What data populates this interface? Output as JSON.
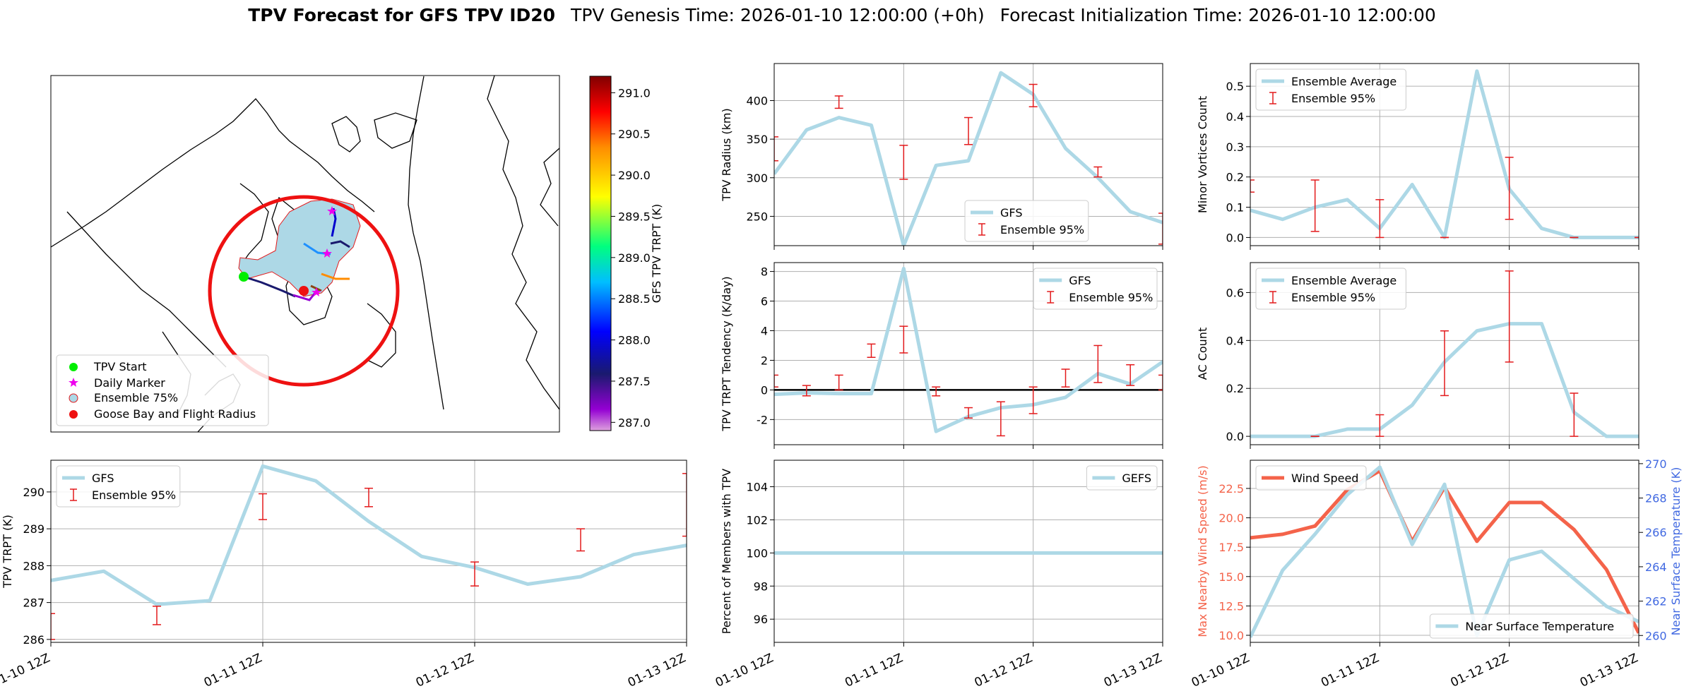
{
  "title": {
    "bold": "TPV Forecast for GFS TPV ID20",
    "genesis": "TPV Genesis Time: 2026-01-10 12:00:00 (+0h)",
    "init": "Forecast Initialization Time: 2026-01-10 12:00:00"
  },
  "colors": {
    "gfs": "#add8e6",
    "ens_err": "#e31a1c",
    "wind": "#f4634a",
    "temp_axis": "#4169e1",
    "track_dark": "#1a1a6e",
    "ens75_fill": "#add8e6",
    "flight_radius": "#ee1111"
  },
  "map": {
    "legend": [
      "TPV Start",
      "Daily Marker",
      "Ensemble 75%",
      "Goose Bay and Flight Radius"
    ],
    "colorbar": {
      "label": "GFS TPV TRPT (K)",
      "ticks": [
        "287.0",
        "287.5",
        "288.0",
        "288.5",
        "289.0",
        "289.5",
        "290.0",
        "290.5",
        "291.0"
      ],
      "min": 286.9,
      "max": 291.2
    }
  },
  "time_labels": [
    "01-10 12Z",
    "01-11 12Z",
    "01-12 12Z",
    "01-13 12Z"
  ],
  "chart_data": [
    {
      "id": "radius",
      "type": "line",
      "ylabel": "TPV Radius (km)",
      "x": [
        0,
        0.25,
        0.5,
        0.75,
        1.0,
        1.25,
        1.5,
        1.75,
        2.0,
        2.25,
        2.5,
        2.75,
        3.0
      ],
      "series": [
        {
          "name": "GFS",
          "values": [
            305,
            362,
            378,
            368,
            212,
            316,
            322,
            436,
            408,
            338,
            300,
            256,
            242
          ]
        }
      ],
      "ens_err": [
        {
          "x": 0,
          "lo": 322,
          "hi": 353
        },
        {
          "x": 0.5,
          "lo": 390,
          "hi": 406
        },
        {
          "x": 1.0,
          "lo": 298,
          "hi": 342
        },
        {
          "x": 1.5,
          "lo": 343,
          "hi": 378
        },
        {
          "x": 2.0,
          "lo": 392,
          "hi": 421
        },
        {
          "x": 2.5,
          "lo": 301,
          "hi": 314
        },
        {
          "x": 3.0,
          "lo": 214,
          "hi": 254
        }
      ],
      "ylim": [
        212,
        448
      ],
      "yticks": [
        250,
        300,
        350,
        400
      ],
      "legend": [
        "GFS",
        "Ensemble 95%"
      ],
      "legend_pos": "bottom-center"
    },
    {
      "id": "minor",
      "type": "line",
      "ylabel": "Minor Vortices Count",
      "x": [
        0,
        0.25,
        0.5,
        0.75,
        1.0,
        1.25,
        1.5,
        1.75,
        2.0,
        2.25,
        2.5,
        2.75,
        3.0
      ],
      "series": [
        {
          "name": "Ensemble Average",
          "values": [
            0.09,
            0.06,
            0.1,
            0.125,
            0.03,
            0.175,
            0.0,
            0.55,
            0.16,
            0.03,
            0.0,
            0.0,
            0.0
          ]
        }
      ],
      "ens_err": [
        {
          "x": 0,
          "lo": 0.15,
          "hi": 0.19
        },
        {
          "x": 0.5,
          "lo": 0.02,
          "hi": 0.19
        },
        {
          "x": 1.0,
          "lo": 0.0,
          "hi": 0.125
        },
        {
          "x": 1.5,
          "lo": 0.0,
          "hi": 0.0
        },
        {
          "x": 2.0,
          "lo": 0.06,
          "hi": 0.265
        },
        {
          "x": 2.5,
          "lo": 0.0,
          "hi": 0.0
        },
        {
          "x": 3.0,
          "lo": 0.0,
          "hi": 0.0
        }
      ],
      "ylim": [
        -0.027,
        0.575
      ],
      "yticks": [
        0.0,
        0.1,
        0.2,
        0.3,
        0.4,
        0.5
      ],
      "legend": [
        "Ensemble Average",
        "Ensemble 95%"
      ],
      "legend_pos": "top-left"
    },
    {
      "id": "tend",
      "type": "line",
      "ylabel": "TPV TRPT Tendency (K/day)",
      "x": [
        0,
        0.25,
        0.5,
        0.75,
        1.0,
        1.25,
        1.5,
        1.75,
        2.0,
        2.25,
        2.5,
        2.75,
        3.0
      ],
      "series": [
        {
          "name": "GFS",
          "values": [
            -0.3,
            -0.2,
            -0.25,
            -0.25,
            8.2,
            -2.8,
            -1.8,
            -1.2,
            -1.0,
            -0.5,
            1.1,
            0.4,
            1.9
          ]
        }
      ],
      "ens_err": [
        {
          "x": 0,
          "lo": 0.2,
          "hi": 1.0
        },
        {
          "x": 0.25,
          "lo": -0.4,
          "hi": 0.3
        },
        {
          "x": 0.5,
          "lo": 0.0,
          "hi": 1.0
        },
        {
          "x": 0.75,
          "lo": 2.2,
          "hi": 3.1
        },
        {
          "x": 1.0,
          "lo": 2.5,
          "hi": 4.3
        },
        {
          "x": 1.25,
          "lo": -0.4,
          "hi": 0.2
        },
        {
          "x": 1.5,
          "lo": -1.9,
          "hi": -1.2
        },
        {
          "x": 1.75,
          "lo": -3.1,
          "hi": -0.8
        },
        {
          "x": 2.0,
          "lo": -1.6,
          "hi": 0.2
        },
        {
          "x": 2.25,
          "lo": 0.2,
          "hi": 1.4
        },
        {
          "x": 2.5,
          "lo": 0.5,
          "hi": 3.0
        },
        {
          "x": 2.75,
          "lo": 0.3,
          "hi": 1.7
        },
        {
          "x": 3.0,
          "lo": 0.0,
          "hi": 1.0
        }
      ],
      "ylim": [
        -3.7,
        8.6
      ],
      "yticks": [
        -2,
        0,
        2,
        4,
        6,
        8
      ],
      "zero_line": true,
      "legend": [
        "GFS",
        "Ensemble 95%"
      ],
      "legend_pos": "top-right"
    },
    {
      "id": "ac",
      "type": "line",
      "ylabel": "AC Count",
      "x": [
        0,
        0.25,
        0.5,
        0.75,
        1.0,
        1.25,
        1.5,
        1.75,
        2.0,
        2.25,
        2.5,
        2.75,
        3.0
      ],
      "series": [
        {
          "name": "Ensemble Average",
          "values": [
            0.0,
            0.0,
            0.0,
            0.03,
            0.03,
            0.13,
            0.31,
            0.44,
            0.47,
            0.47,
            0.1,
            0.0,
            0.0
          ]
        }
      ],
      "ens_err": [
        {
          "x": 0.5,
          "lo": 0.0,
          "hi": 0.0
        },
        {
          "x": 1.0,
          "lo": 0.0,
          "hi": 0.09
        },
        {
          "x": 1.5,
          "lo": 0.17,
          "hi": 0.44
        },
        {
          "x": 2.0,
          "lo": 0.31,
          "hi": 0.69
        },
        {
          "x": 2.5,
          "lo": 0.0,
          "hi": 0.18
        }
      ],
      "ylim": [
        -0.035,
        0.725
      ],
      "yticks": [
        0.0,
        0.2,
        0.4,
        0.6
      ],
      "legend": [
        "Ensemble Average",
        "Ensemble 95%"
      ],
      "legend_pos": "top-left"
    },
    {
      "id": "trpt",
      "type": "line",
      "ylabel": "TPV TRPT (K)",
      "x": [
        0,
        0.25,
        0.5,
        0.75,
        1.0,
        1.25,
        1.5,
        1.75,
        2.0,
        2.25,
        2.5,
        2.75,
        3.0
      ],
      "series": [
        {
          "name": "GFS",
          "values": [
            287.6,
            287.85,
            286.95,
            287.05,
            290.7,
            290.3,
            289.2,
            288.25,
            287.95,
            287.5,
            287.7,
            288.3,
            288.55
          ]
        }
      ],
      "ens_err": [
        {
          "x": 0,
          "lo": 286.0,
          "hi": 286.7
        },
        {
          "x": 0.5,
          "lo": 286.4,
          "hi": 286.9
        },
        {
          "x": 1.0,
          "lo": 289.25,
          "hi": 289.95
        },
        {
          "x": 1.5,
          "lo": 289.6,
          "hi": 290.1
        },
        {
          "x": 2.0,
          "lo": 287.45,
          "hi": 288.1
        },
        {
          "x": 2.5,
          "lo": 288.4,
          "hi": 289.0
        },
        {
          "x": 3.0,
          "lo": 288.8,
          "hi": 290.5
        }
      ],
      "ylim": [
        285.92,
        290.86
      ],
      "yticks": [
        286,
        287,
        288,
        289,
        290
      ],
      "legend": [
        "GFS",
        "Ensemble 95%"
      ],
      "legend_pos": "top-left"
    },
    {
      "id": "pct",
      "type": "line",
      "ylabel": "Percent of Members with TPV",
      "x": [
        0,
        3.0
      ],
      "series": [
        {
          "name": "GEFS",
          "values": [
            100,
            100
          ]
        }
      ],
      "ylim": [
        94.6,
        105.6
      ],
      "yticks": [
        96,
        98,
        100,
        102,
        104
      ],
      "legend": [
        "GEFS"
      ],
      "legend_pos": "top-right"
    },
    {
      "id": "wind",
      "type": "line",
      "ylabel": "Max Nearby Wind Speed (m/s)",
      "ylabel2": "Near Surface Temperature (K)",
      "x": [
        0,
        0.25,
        0.5,
        0.75,
        1.0,
        1.25,
        1.5,
        1.75,
        2.0,
        2.25,
        2.5,
        2.75,
        3.0
      ],
      "series": [
        {
          "name": "Wind Speed",
          "axis": "left",
          "values": [
            18.3,
            18.6,
            19.3,
            22.4,
            24.0,
            18.0,
            22.6,
            18.0,
            21.3,
            21.3,
            19.0,
            15.6,
            10.2
          ]
        },
        {
          "name": "Near Surface Temperature",
          "axis": "right",
          "values": [
            259.9,
            263.8,
            265.9,
            268.2,
            269.8,
            265.3,
            268.8,
            260.0,
            264.4,
            264.9,
            263.3,
            261.7,
            260.8
          ]
        }
      ],
      "ylim": [
        9.4,
        24.9
      ],
      "yticks": [
        10.0,
        12.5,
        15.0,
        17.5,
        20.0,
        22.5
      ],
      "ylim2": [
        259.6,
        270.2
      ],
      "yticks2": [
        260,
        262,
        264,
        266,
        268,
        270
      ],
      "legend": [
        "Wind Speed"
      ],
      "legend2": [
        "Near Surface Temperature"
      ]
    }
  ]
}
